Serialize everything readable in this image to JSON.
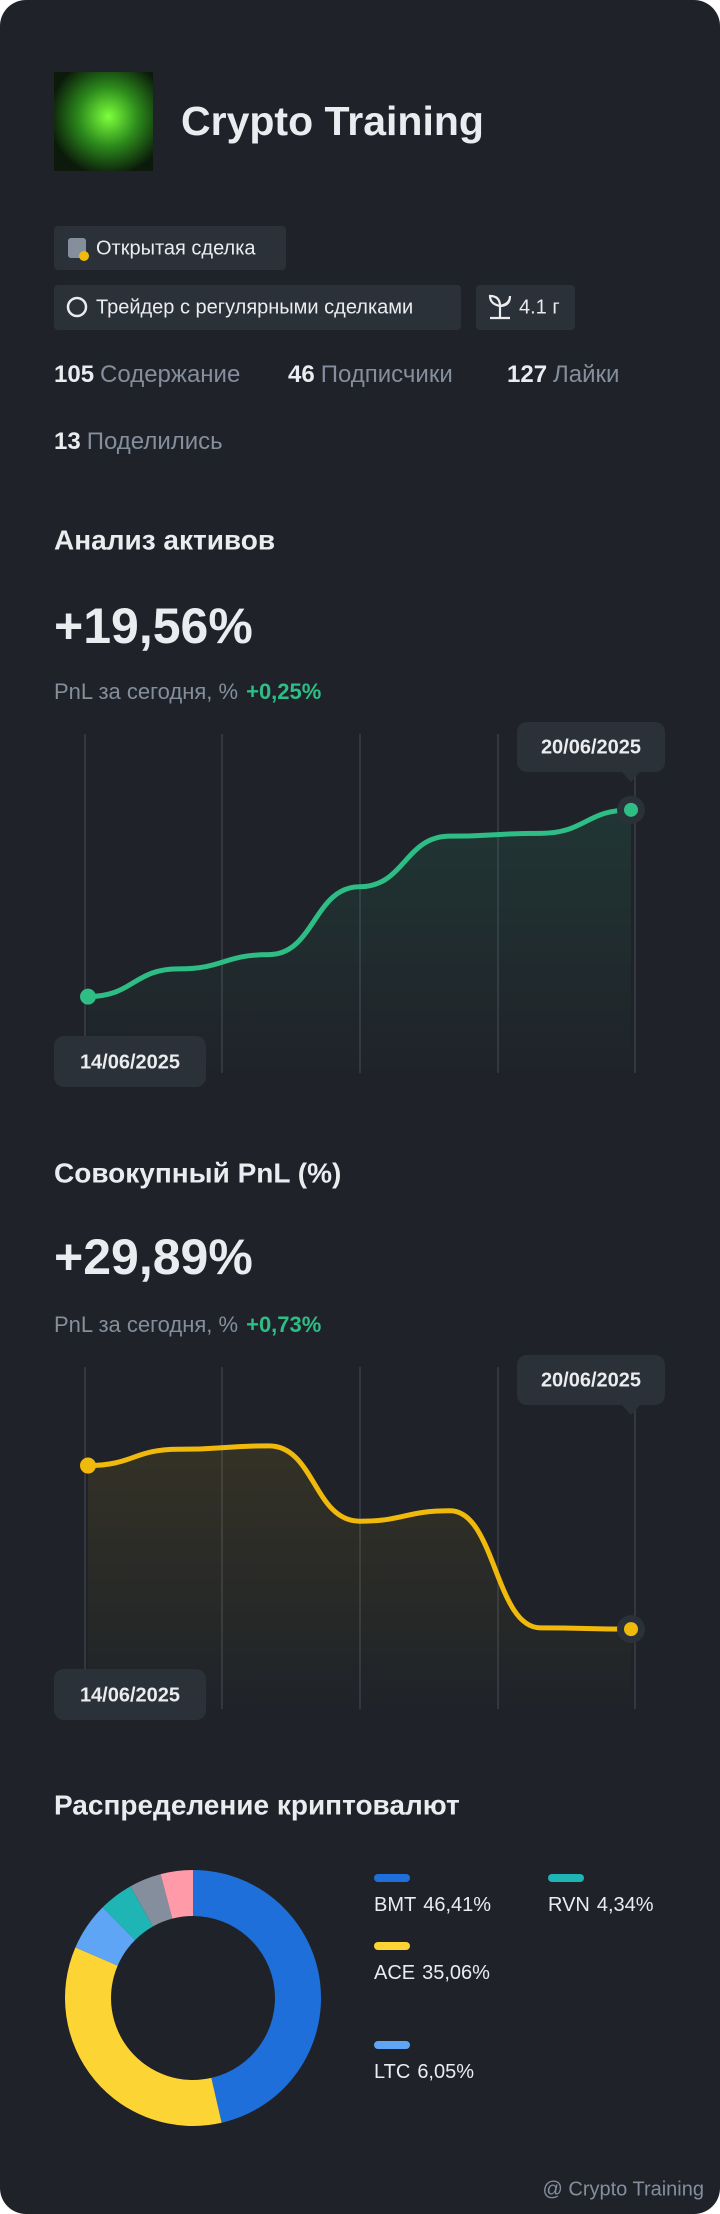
{
  "profile": {
    "name": "Crypto Training"
  },
  "badges": [
    {
      "text": "Открытая сделка"
    },
    {
      "text": "Трейдер с регулярными сделками"
    },
    {
      "text": "4.1 г"
    }
  ],
  "stats": [
    {
      "count": 105,
      "label": "Содержание"
    },
    {
      "count": 46,
      "label": "Подписчики"
    },
    {
      "count": 127,
      "label": "Лайки"
    },
    {
      "count": 13,
      "label": "Поделились"
    }
  ],
  "chart_data": [
    {
      "type": "line",
      "title": "Анализ активов",
      "headline": "+19,56%",
      "subtitle": "PnL за сегодня, %",
      "change": "+0,25%",
      "categories": [
        "14/06/2025",
        null,
        null,
        null,
        null,
        null,
        "20/06/2025"
      ],
      "values": [
        0,
        2.9,
        4.4,
        11.5,
        16.8,
        17.1,
        19.56
      ],
      "color": "#2ebd85",
      "ylim": [
        -8,
        27.5
      ]
    },
    {
      "type": "line",
      "title": "Совокупный PnL (%)",
      "headline": "+29,89%",
      "subtitle": "PnL за сегодня, %",
      "change": "+0,73%",
      "categories": [
        "14/06/2025",
        null,
        null,
        null,
        null,
        null,
        "20/06/2025"
      ],
      "values": [
        44,
        45.4,
        45.7,
        39.2,
        40.1,
        30,
        29.89
      ],
      "color": "#f0b90b",
      "ylim": [
        23,
        52.5
      ]
    },
    {
      "type": "pie",
      "title": "Распределение криптовалют",
      "series": [
        {
          "name": "BMT",
          "color": "#1e6fd9",
          "values": [
            46.41
          ],
          "value_labels": [
            "46,41%"
          ]
        },
        {
          "name": "ACE",
          "color": "#fcd535",
          "values": [
            35.06
          ],
          "value_labels": [
            "35,06%"
          ]
        },
        {
          "name": "LTC",
          "color": "#5ea5f5",
          "values": [
            6.05
          ],
          "value_labels": [
            "6,05%"
          ]
        },
        {
          "name": "RVN",
          "color": "#1fb5b5",
          "values": [
            4.34
          ],
          "value_labels": [
            "4,34%"
          ]
        },
        {
          "name": null,
          "color": "#848e9c",
          "values": [
            4.07
          ]
        },
        {
          "name": null,
          "color": "#ff9aa8",
          "values": [
            4.07
          ]
        }
      ]
    }
  ],
  "watermark": "@ Crypto Training"
}
